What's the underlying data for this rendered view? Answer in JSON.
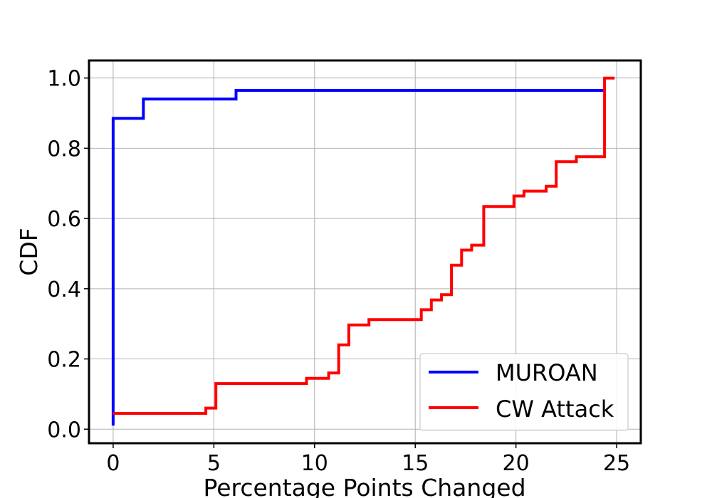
{
  "chart_data": {
    "type": "line",
    "step": true,
    "xlabel": "Percentage Points Changed",
    "ylabel": "CDF",
    "xlim": [
      -1.2,
      26.2
    ],
    "ylim": [
      -0.04,
      1.05
    ],
    "x_ticks": [
      0,
      5,
      10,
      15,
      20,
      25
    ],
    "y_ticks": [
      0.0,
      0.2,
      0.4,
      0.6,
      0.8,
      1.0
    ],
    "x_tick_labels": [
      "0",
      "5",
      "10",
      "15",
      "20",
      "25"
    ],
    "y_tick_labels": [
      "0.0",
      "0.2",
      "0.4",
      "0.6",
      "0.8",
      "1.0"
    ],
    "grid": true,
    "legend_position": "lower-right",
    "series": [
      {
        "name": "MUROAN",
        "color": "#0000ff",
        "x": [
          0,
          0,
          1.5,
          6.1,
          24.4
        ],
        "y": [
          0.01,
          0.885,
          0.94,
          0.965,
          0.965
        ]
      },
      {
        "name": "CW Attack",
        "color": "#ff0000",
        "x": [
          0,
          4.6,
          5.1,
          9.6,
          10.7,
          11.2,
          11.7,
          12.7,
          15.3,
          15.8,
          16.3,
          16.8,
          17.3,
          17.8,
          18.4,
          19.9,
          20.4,
          21.5,
          22.0,
          23.0,
          24.4,
          24.9
        ],
        "y": [
          0.045,
          0.06,
          0.13,
          0.145,
          0.16,
          0.24,
          0.297,
          0.312,
          0.34,
          0.368,
          0.383,
          0.467,
          0.51,
          0.524,
          0.634,
          0.664,
          0.678,
          0.692,
          0.762,
          0.776,
          1.0,
          1.0
        ]
      }
    ]
  }
}
